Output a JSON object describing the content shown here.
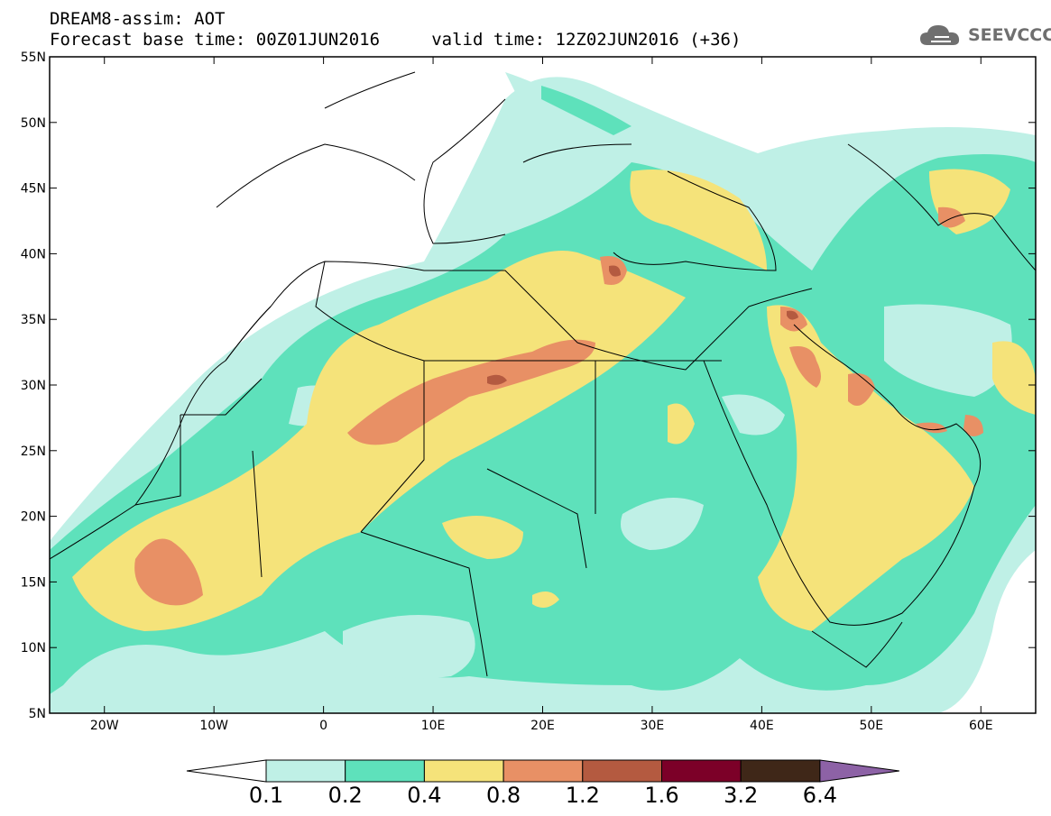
{
  "header": {
    "title_line1": "DREAM8-assim: AOT",
    "title_line2": "Forecast base time: 00Z01JUN2016     valid time: 12Z02JUN2016 (+36)",
    "logo_text": "SEEVCCC",
    "logo_icon": "cloud-icon"
  },
  "map": {
    "lon_ticks": [
      "20W",
      "10W",
      "0",
      "10E",
      "20E",
      "30E",
      "40E",
      "50E",
      "60E"
    ],
    "lat_ticks": [
      "55N",
      "50N",
      "45N",
      "40N",
      "35N",
      "30N",
      "25N",
      "20N",
      "15N",
      "10N",
      "5N"
    ],
    "lon_range": [
      -25,
      65
    ],
    "lat_range": [
      5,
      55
    ]
  },
  "colorbar": {
    "labels": [
      "0.1",
      "0.2",
      "0.4",
      "0.8",
      "1.2",
      "1.6",
      "3.2",
      "6.4"
    ],
    "colors": [
      "#ffffff",
      "#bff0e6",
      "#5ee1bb",
      "#f5e37a",
      "#e89065",
      "#b45a40",
      "#7c0028",
      "#3f2718",
      "#8d62a6"
    ]
  },
  "colors": {
    "very_low": "#bff0e6",
    "low": "#5ee1bb",
    "mid": "#f5e37a",
    "high": "#e89065",
    "very_high": "#b45a40"
  }
}
